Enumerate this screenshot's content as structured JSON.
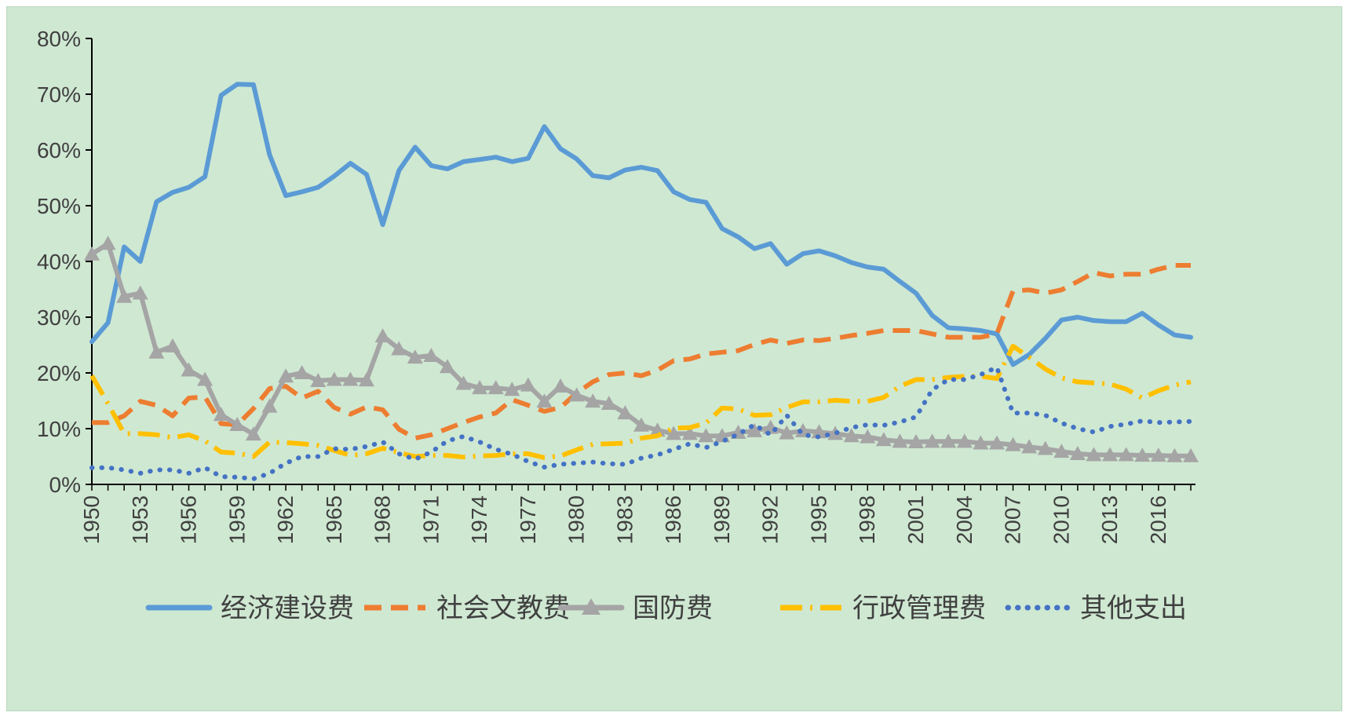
{
  "chart_data": {
    "type": "line",
    "title": "",
    "xlabel": "",
    "ylabel": "",
    "ylim": [
      0,
      0.8
    ],
    "y_tick_labels": [
      "0%",
      "10%",
      "20%",
      "30%",
      "40%",
      "50%",
      "60%",
      "70%",
      "80%"
    ],
    "x_tick_labels": [
      "1950",
      "1953",
      "1956",
      "1959",
      "1962",
      "1965",
      "1968",
      "1971",
      "1974",
      "1977",
      "1980",
      "1983",
      "1986",
      "1989",
      "1992",
      "1995",
      "1998",
      "2001",
      "2004",
      "2007",
      "2010",
      "2013",
      "2016"
    ],
    "grid": false,
    "legend": "bottom",
    "x": [
      1950,
      1951,
      1952,
      1953,
      1954,
      1955,
      1956,
      1957,
      1958,
      1959,
      1960,
      1961,
      1962,
      1963,
      1964,
      1965,
      1966,
      1967,
      1968,
      1969,
      1970,
      1971,
      1972,
      1973,
      1974,
      1975,
      1976,
      1977,
      1978,
      1979,
      1980,
      1981,
      1982,
      1983,
      1984,
      1985,
      1986,
      1987,
      1988,
      1989,
      1990,
      1991,
      1992,
      1993,
      1994,
      1995,
      1996,
      1997,
      1998,
      1999,
      2000,
      2001,
      2002,
      2003,
      2004,
      2005,
      2006,
      2007,
      2008,
      2009,
      2010,
      2011,
      2012,
      2013,
      2014,
      2015,
      2016,
      2017,
      2018
    ],
    "series": [
      {
        "name": "经济建设费",
        "color": "#5b9bd5",
        "style": "solid",
        "values": [
          0.256,
          0.29,
          0.426,
          0.4,
          0.507,
          0.524,
          0.533,
          0.552,
          0.698,
          0.718,
          0.717,
          0.591,
          0.518,
          0.525,
          0.533,
          0.553,
          0.576,
          0.556,
          0.466,
          0.563,
          0.605,
          0.572,
          0.566,
          0.579,
          0.583,
          0.587,
          0.579,
          0.585,
          0.642,
          0.602,
          0.584,
          0.554,
          0.55,
          0.564,
          0.569,
          0.563,
          0.525,
          0.511,
          0.506,
          0.459,
          0.444,
          0.423,
          0.432,
          0.395,
          0.414,
          0.419,
          0.41,
          0.398,
          0.39,
          0.386,
          0.364,
          0.343,
          0.303,
          0.281,
          0.279,
          0.276,
          0.27,
          0.215,
          0.233,
          0.262,
          0.295,
          0.3,
          0.294,
          0.292,
          0.292,
          0.307,
          0.286,
          0.268,
          0.264
        ]
      },
      {
        "name": "社会文教费",
        "color": "#ed7d31",
        "style": "dashed",
        "values": [
          0.111,
          0.111,
          0.123,
          0.149,
          0.142,
          0.123,
          0.155,
          0.157,
          0.109,
          0.107,
          0.136,
          0.172,
          0.176,
          0.155,
          0.167,
          0.138,
          0.126,
          0.139,
          0.134,
          0.099,
          0.083,
          0.089,
          0.1,
          0.111,
          0.121,
          0.128,
          0.152,
          0.142,
          0.131,
          0.138,
          0.164,
          0.184,
          0.197,
          0.2,
          0.195,
          0.205,
          0.222,
          0.225,
          0.234,
          0.237,
          0.24,
          0.251,
          0.259,
          0.253,
          0.259,
          0.258,
          0.262,
          0.267,
          0.271,
          0.276,
          0.276,
          0.276,
          0.27,
          0.264,
          0.264,
          0.264,
          0.27,
          0.347,
          0.349,
          0.343,
          0.349,
          0.364,
          0.38,
          0.374,
          0.377,
          0.377,
          0.386,
          0.393,
          0.393
        ]
      },
      {
        "name": "国防费",
        "color": "#a5a5a5",
        "style": "solid-triangle",
        "values": [
          0.413,
          0.432,
          0.337,
          0.343,
          0.237,
          0.248,
          0.205,
          0.188,
          0.125,
          0.107,
          0.09,
          0.14,
          0.194,
          0.2,
          0.186,
          0.188,
          0.188,
          0.187,
          0.266,
          0.243,
          0.228,
          0.231,
          0.211,
          0.181,
          0.173,
          0.173,
          0.17,
          0.178,
          0.149,
          0.176,
          0.16,
          0.149,
          0.145,
          0.128,
          0.106,
          0.097,
          0.091,
          0.091,
          0.087,
          0.087,
          0.093,
          0.096,
          0.102,
          0.092,
          0.096,
          0.094,
          0.091,
          0.087,
          0.085,
          0.08,
          0.077,
          0.076,
          0.077,
          0.077,
          0.077,
          0.074,
          0.074,
          0.071,
          0.067,
          0.064,
          0.059,
          0.055,
          0.053,
          0.053,
          0.053,
          0.052,
          0.052,
          0.051,
          0.051
        ]
      },
      {
        "name": "行政管理费",
        "color": "#ffc000",
        "style": "dashdot",
        "values": [
          0.195,
          0.145,
          0.091,
          0.091,
          0.089,
          0.084,
          0.089,
          0.078,
          0.058,
          0.056,
          0.05,
          0.076,
          0.075,
          0.073,
          0.07,
          0.061,
          0.052,
          0.055,
          0.065,
          0.057,
          0.05,
          0.052,
          0.052,
          0.049,
          0.051,
          0.052,
          0.055,
          0.055,
          0.048,
          0.051,
          0.062,
          0.072,
          0.073,
          0.074,
          0.083,
          0.087,
          0.101,
          0.102,
          0.11,
          0.137,
          0.135,
          0.124,
          0.125,
          0.138,
          0.148,
          0.148,
          0.151,
          0.149,
          0.149,
          0.156,
          0.176,
          0.188,
          0.188,
          0.192,
          0.194,
          0.194,
          0.19,
          0.248,
          0.228,
          0.207,
          0.191,
          0.184,
          0.182,
          0.18,
          0.171,
          0.155,
          0.168,
          0.178,
          0.184
        ]
      },
      {
        "name": "其他支出",
        "color": "#4472c4",
        "style": "dotted",
        "values": [
          0.03,
          0.03,
          0.026,
          0.02,
          0.026,
          0.026,
          0.02,
          0.03,
          0.014,
          0.013,
          0.01,
          0.02,
          0.038,
          0.05,
          0.05,
          0.064,
          0.063,
          0.068,
          0.076,
          0.055,
          0.045,
          0.058,
          0.078,
          0.086,
          0.076,
          0.063,
          0.054,
          0.041,
          0.031,
          0.036,
          0.038,
          0.04,
          0.037,
          0.036,
          0.047,
          0.053,
          0.063,
          0.073,
          0.066,
          0.077,
          0.09,
          0.107,
          0.089,
          0.124,
          0.089,
          0.085,
          0.092,
          0.102,
          0.107,
          0.106,
          0.112,
          0.121,
          0.17,
          0.188,
          0.188,
          0.197,
          0.21,
          0.128,
          0.128,
          0.124,
          0.11,
          0.1,
          0.094,
          0.104,
          0.108,
          0.114,
          0.111,
          0.112,
          0.113
        ]
      }
    ]
  }
}
